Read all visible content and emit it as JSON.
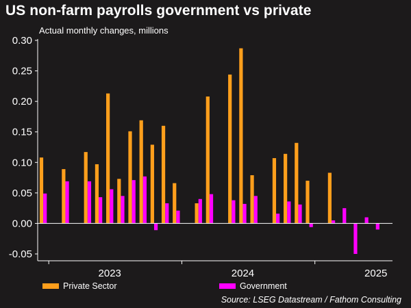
{
  "title": "US non-farm payrolls government vs private",
  "subtitle": "Actual monthly changes, millions",
  "source": "Source: LSEG Datastream / Fathom Consulting",
  "colors": {
    "private": "#ff9f1c",
    "government": "#ff00ff",
    "background": "#1c1a1b",
    "axis": "#ffffff"
  },
  "chart_data": {
    "type": "bar",
    "ylim": [
      -0.05,
      0.3
    ],
    "yticks": [
      "0.30",
      "0.25",
      "0.20",
      "0.15",
      "0.10",
      "0.05",
      "0.00",
      "-0.05"
    ],
    "x": [
      "2022-12",
      "2023-01",
      "2023-02",
      "2023-03",
      "2023-04",
      "2023-05",
      "2023-06",
      "2023-07",
      "2023-08",
      "2023-09",
      "2023-10",
      "2023-11",
      "2023-12",
      "2024-01",
      "2024-02",
      "2024-03",
      "2024-04",
      "2024-05",
      "2024-06",
      "2024-07",
      "2024-08",
      "2024-09",
      "2024-10",
      "2024-11",
      "2024-12",
      "2025-01",
      "2025-02",
      "2025-03",
      "2025-04",
      "2025-05",
      "2025-06",
      "2025-07"
    ],
    "x_tick_labels": [
      "2023",
      "2024",
      "2025"
    ],
    "legend_position": "bottom",
    "series": [
      {
        "name": "Private Sector",
        "values": [
          0.108,
          null,
          0.089,
          null,
          0.117,
          0.097,
          0.213,
          0.073,
          0.151,
          0.169,
          0.129,
          0.16,
          0.066,
          null,
          0.033,
          0.208,
          null,
          0.244,
          0.287,
          0.079,
          null,
          0.107,
          0.114,
          0.132,
          0.07,
          null,
          0.083,
          null,
          null,
          null,
          null,
          null
        ]
      },
      {
        "name": "Government",
        "values": [
          0.049,
          null,
          0.069,
          null,
          0.069,
          0.043,
          0.056,
          0.045,
          0.071,
          0.077,
          -0.011,
          0.033,
          0.021,
          null,
          0.04,
          0.048,
          null,
          0.038,
          0.032,
          0.045,
          null,
          0.016,
          0.036,
          0.031,
          -0.006,
          null,
          0.005,
          0.025,
          -0.05,
          0.01,
          -0.01,
          null
        ]
      }
    ]
  }
}
